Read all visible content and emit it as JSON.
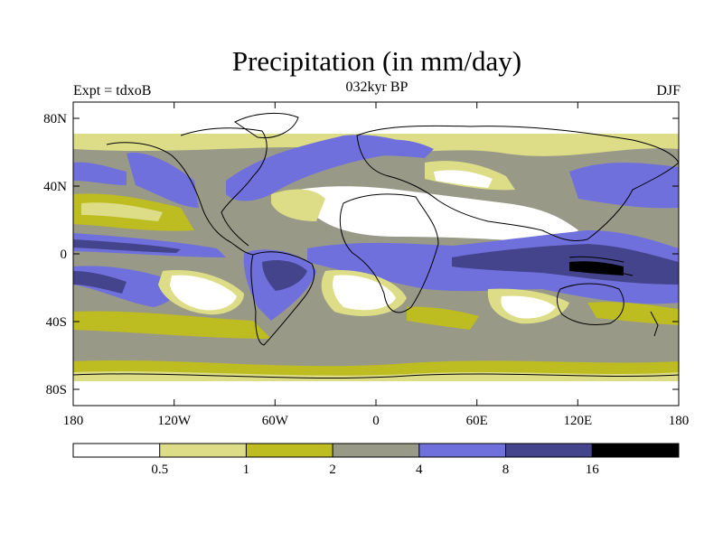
{
  "title": "Precipitation (in mm/day)",
  "left_label": "Expt = tdxoB",
  "center_label": "032kyr BP",
  "right_label": "DJF",
  "map": {
    "y_ticks": [
      "80N",
      "40N",
      "0",
      "40S",
      "80S"
    ],
    "x_ticks": [
      "180",
      "120W",
      "60W",
      "0",
      "60E",
      "120E",
      "180"
    ]
  },
  "colorbar": {
    "labels": [
      "0.5",
      "1",
      "2",
      "4",
      "8",
      "16"
    ],
    "colors": [
      "#ffffff",
      "#dddd88",
      "#bdbd22",
      "#999988",
      "#7070dd",
      "#44448c",
      "#000000"
    ]
  }
}
